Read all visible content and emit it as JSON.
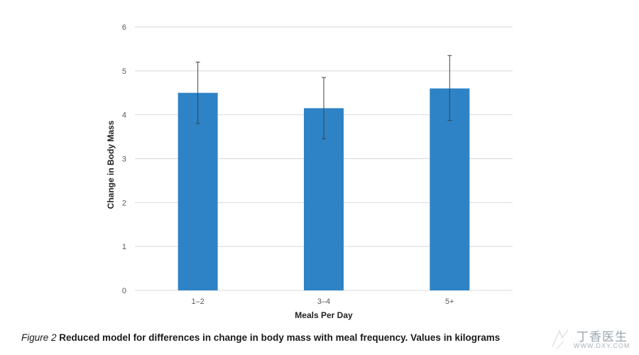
{
  "chart_data": {
    "type": "bar",
    "categories": [
      "1–2",
      "3–4",
      "5+"
    ],
    "values": [
      4.5,
      4.15,
      4.6
    ],
    "error_high": [
      5.2,
      4.85,
      5.35
    ],
    "error_low": [
      3.8,
      3.45,
      3.87
    ],
    "xlabel": "Meals Per Day",
    "ylabel": "Change in Body Mass",
    "ylim": [
      0,
      6
    ],
    "yticks": [
      0,
      1,
      2,
      3,
      4,
      5,
      6
    ],
    "grid": true,
    "bar_color": "#2E83C6",
    "gridline_color": "#D9D9D9",
    "errorbar_color": "#404040"
  },
  "caption": {
    "label": "Figure 2",
    "text": "Reduced model for differences in change in body mass with meal frequency. Values in kilograms"
  },
  "watermark": {
    "text": "丁香医生",
    "url": "WWW.DXY.COM"
  }
}
